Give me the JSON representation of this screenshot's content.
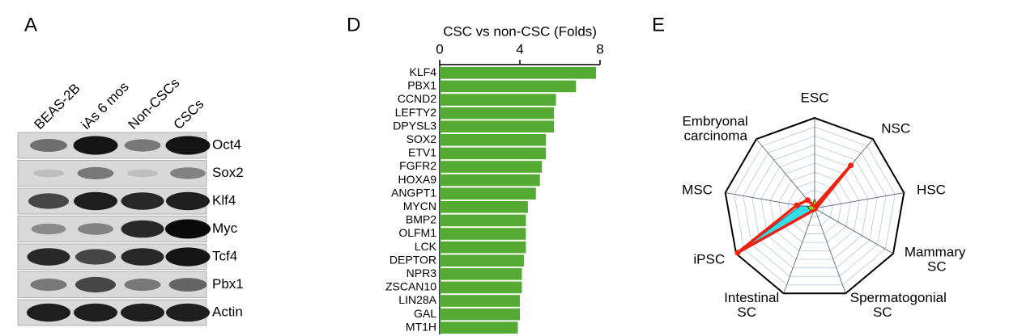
{
  "panel_a": {
    "label": "A",
    "lanes": [
      "BEAS-2B",
      "iAs 6 mos",
      "Non-CSCs",
      "CSCs"
    ],
    "rows": [
      {
        "name": "Oct4",
        "bands": [
          0.5,
          0.95,
          0.45,
          0.95
        ]
      },
      {
        "name": "Sox2",
        "bands": [
          0.1,
          0.45,
          0.1,
          0.4
        ]
      },
      {
        "name": "Klf4",
        "bands": [
          0.7,
          0.9,
          0.85,
          0.9
        ]
      },
      {
        "name": "Myc",
        "bands": [
          0.35,
          0.4,
          0.85,
          1.0
        ]
      },
      {
        "name": "Tcf4",
        "bands": [
          0.85,
          0.7,
          0.85,
          0.95
        ]
      },
      {
        "name": "Pbx1",
        "bands": [
          0.45,
          0.7,
          0.45,
          0.55
        ]
      },
      {
        "name": "Actin",
        "bands": [
          0.9,
          0.9,
          0.9,
          0.9
        ]
      }
    ]
  },
  "chart_data": [
    {
      "type": "bar",
      "label": "D",
      "title": "CSC vs non-CSC (Folds)",
      "categories": [
        "KLF4",
        "PBX1",
        "CCND2",
        "LEFTY2",
        "DPYSL3",
        "SOX2",
        "ETV1",
        "FGFR2",
        "HOXA9",
        "ANGPT1",
        "MYCN",
        "BMP2",
        "OLFM1",
        "LCK",
        "DEPTOR",
        "NPR3",
        "ZSCAN10",
        "LIN28A",
        "GAL",
        "MT1H"
      ],
      "values": [
        7.8,
        6.8,
        5.8,
        5.7,
        5.7,
        5.3,
        5.3,
        5.1,
        5.0,
        4.8,
        4.4,
        4.3,
        4.3,
        4.3,
        4.2,
        4.1,
        4.1,
        4.0,
        4.0,
        3.9
      ],
      "color": "#55aa33",
      "xlim": [
        0,
        8
      ],
      "xticks": [
        0,
        4,
        8
      ]
    },
    {
      "type": "radar",
      "label": "E",
      "categories": [
        [
          "ESC"
        ],
        [
          "NSC"
        ],
        [
          "HSC"
        ],
        [
          "Mammary",
          "SC"
        ],
        [
          "Spermatogonial",
          "SC"
        ],
        [
          "Intestinal",
          "SC"
        ],
        [
          "iPSC"
        ],
        [
          "MSC"
        ],
        [
          "Embryonal",
          "carcinoma"
        ]
      ],
      "rlim": [
        0,
        1
      ],
      "grid_rings": 10,
      "series": [
        {
          "color": "#33dde8",
          "values": [
            0.03,
            0.03,
            0.02,
            0.02,
            0.02,
            0.03,
            0.95,
            0.16,
            0.03
          ]
        },
        {
          "color": "#99cc00",
          "values": [
            0.1,
            0.05,
            0.03,
            0.02,
            0.02,
            0.02,
            0.05,
            0.08,
            0.05
          ]
        },
        {
          "color": "#ee2211",
          "values": [
            0.02,
            0.62,
            0.02,
            0.02,
            0.02,
            0.02,
            0.98,
            0.2,
            0.12
          ]
        }
      ]
    }
  ]
}
